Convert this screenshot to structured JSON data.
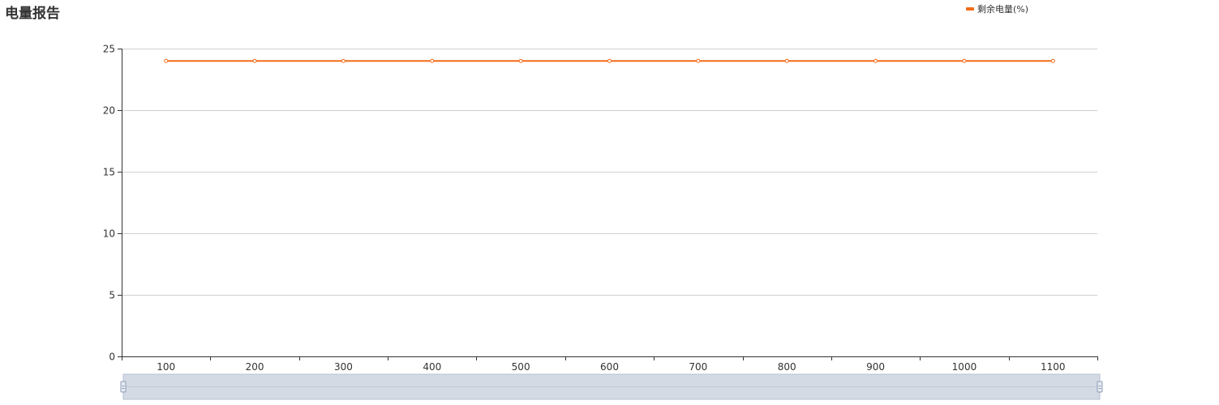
{
  "page": {
    "title": "电量报告"
  },
  "colors": {
    "series": "#f26c1a",
    "grid": "#d0d0d0",
    "axis": "#333333",
    "slider_fill": "#d3dae4",
    "slider_border": "#b4c0d1"
  },
  "chart_data": {
    "type": "line",
    "title": "电量报告",
    "xlabel": "",
    "ylabel": "",
    "x": [
      100,
      200,
      300,
      400,
      500,
      600,
      700,
      800,
      900,
      1000,
      1100
    ],
    "series": [
      {
        "name": "剩余电量(%)",
        "values": [
          24,
          24,
          24,
          24,
          24,
          24,
          24,
          24,
          24,
          24,
          24
        ]
      }
    ],
    "ylim": [
      0,
      25
    ],
    "yticks": [
      0,
      5,
      10,
      15,
      20,
      25
    ],
    "grid": true,
    "legend": "top-right",
    "data_zoom_slider": true
  }
}
